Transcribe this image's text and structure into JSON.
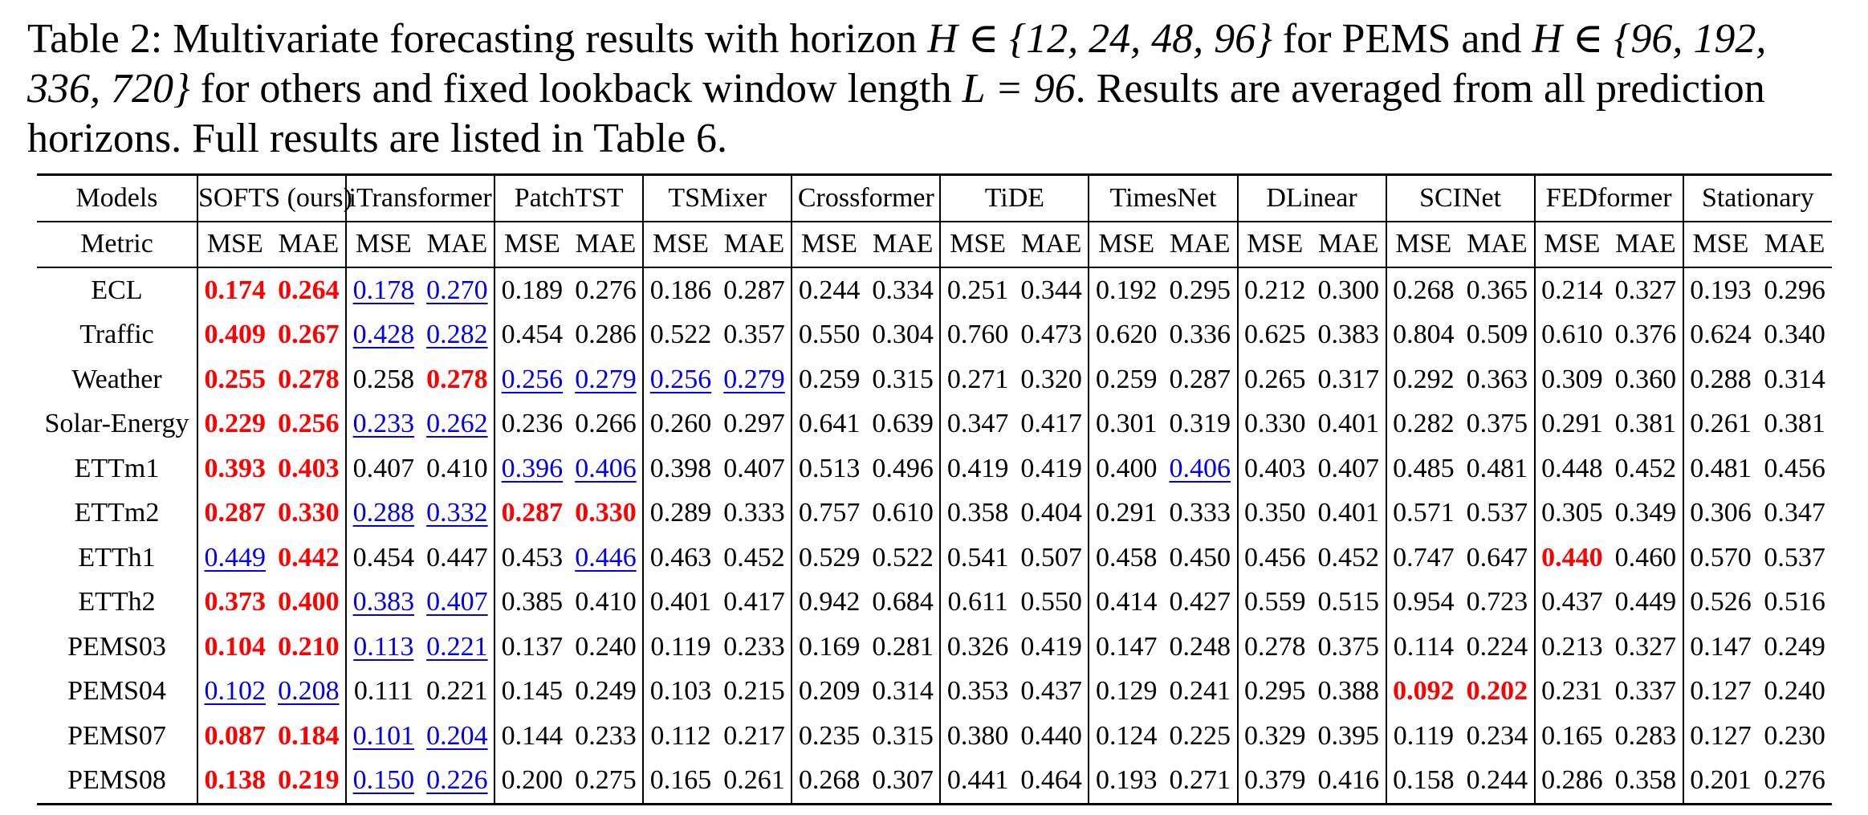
{
  "caption": {
    "label": "Table 2:",
    "p1": "Multivariate forecasting results with horizon ",
    "math1": "H ∈ {12, 24, 48, 96}",
    "p2": " for PEMS and ",
    "math2": "H ∈ {96, 192, 336, 720}",
    "p3": " for others and fixed lookback window length ",
    "math3": "L = 96",
    "p4": ". Results are averaged from all prediction horizons. Full results are listed in Table 6."
  },
  "table": {
    "models_label": "Models",
    "metric_label": "Metric",
    "metrics": [
      "MSE",
      "MAE"
    ],
    "models": [
      "SOFTS (ours)",
      "iTransformer",
      "PatchTST",
      "TSMixer",
      "Crossformer",
      "TiDE",
      "TimesNet",
      "DLinear",
      "SCINet",
      "FEDformer",
      "Stationary"
    ],
    "rows": [
      {
        "dataset": "ECL",
        "cells": [
          {
            "v": "0.174",
            "s": "best"
          },
          {
            "v": "0.264",
            "s": "best"
          },
          {
            "v": "0.178",
            "s": "second"
          },
          {
            "v": "0.270",
            "s": "second"
          },
          {
            "v": "0.189"
          },
          {
            "v": "0.276"
          },
          {
            "v": "0.186"
          },
          {
            "v": "0.287"
          },
          {
            "v": "0.244"
          },
          {
            "v": "0.334"
          },
          {
            "v": "0.251"
          },
          {
            "v": "0.344"
          },
          {
            "v": "0.192"
          },
          {
            "v": "0.295"
          },
          {
            "v": "0.212"
          },
          {
            "v": "0.300"
          },
          {
            "v": "0.268"
          },
          {
            "v": "0.365"
          },
          {
            "v": "0.214"
          },
          {
            "v": "0.327"
          },
          {
            "v": "0.193"
          },
          {
            "v": "0.296"
          }
        ]
      },
      {
        "dataset": "Traffic",
        "cells": [
          {
            "v": "0.409",
            "s": "best"
          },
          {
            "v": "0.267",
            "s": "best"
          },
          {
            "v": "0.428",
            "s": "second"
          },
          {
            "v": "0.282",
            "s": "second"
          },
          {
            "v": "0.454"
          },
          {
            "v": "0.286"
          },
          {
            "v": "0.522"
          },
          {
            "v": "0.357"
          },
          {
            "v": "0.550"
          },
          {
            "v": "0.304"
          },
          {
            "v": "0.760"
          },
          {
            "v": "0.473"
          },
          {
            "v": "0.620"
          },
          {
            "v": "0.336"
          },
          {
            "v": "0.625"
          },
          {
            "v": "0.383"
          },
          {
            "v": "0.804"
          },
          {
            "v": "0.509"
          },
          {
            "v": "0.610"
          },
          {
            "v": "0.376"
          },
          {
            "v": "0.624"
          },
          {
            "v": "0.340"
          }
        ]
      },
      {
        "dataset": "Weather",
        "cells": [
          {
            "v": "0.255",
            "s": "best"
          },
          {
            "v": "0.278",
            "s": "best"
          },
          {
            "v": "0.258"
          },
          {
            "v": "0.278",
            "s": "best"
          },
          {
            "v": "0.256",
            "s": "second"
          },
          {
            "v": "0.279",
            "s": "second"
          },
          {
            "v": "0.256",
            "s": "second"
          },
          {
            "v": "0.279",
            "s": "second"
          },
          {
            "v": "0.259"
          },
          {
            "v": "0.315"
          },
          {
            "v": "0.271"
          },
          {
            "v": "0.320"
          },
          {
            "v": "0.259"
          },
          {
            "v": "0.287"
          },
          {
            "v": "0.265"
          },
          {
            "v": "0.317"
          },
          {
            "v": "0.292"
          },
          {
            "v": "0.363"
          },
          {
            "v": "0.309"
          },
          {
            "v": "0.360"
          },
          {
            "v": "0.288"
          },
          {
            "v": "0.314"
          }
        ]
      },
      {
        "dataset": "Solar-Energy",
        "cells": [
          {
            "v": "0.229",
            "s": "best"
          },
          {
            "v": "0.256",
            "s": "best"
          },
          {
            "v": "0.233",
            "s": "second"
          },
          {
            "v": "0.262",
            "s": "second"
          },
          {
            "v": "0.236"
          },
          {
            "v": "0.266"
          },
          {
            "v": "0.260"
          },
          {
            "v": "0.297"
          },
          {
            "v": "0.641"
          },
          {
            "v": "0.639"
          },
          {
            "v": "0.347"
          },
          {
            "v": "0.417"
          },
          {
            "v": "0.301"
          },
          {
            "v": "0.319"
          },
          {
            "v": "0.330"
          },
          {
            "v": "0.401"
          },
          {
            "v": "0.282"
          },
          {
            "v": "0.375"
          },
          {
            "v": "0.291"
          },
          {
            "v": "0.381"
          },
          {
            "v": "0.261"
          },
          {
            "v": "0.381"
          }
        ]
      },
      {
        "dataset": "ETTm1",
        "cells": [
          {
            "v": "0.393",
            "s": "best"
          },
          {
            "v": "0.403",
            "s": "best"
          },
          {
            "v": "0.407"
          },
          {
            "v": "0.410"
          },
          {
            "v": "0.396",
            "s": "second"
          },
          {
            "v": "0.406",
            "s": "second"
          },
          {
            "v": "0.398"
          },
          {
            "v": "0.407"
          },
          {
            "v": "0.513"
          },
          {
            "v": "0.496"
          },
          {
            "v": "0.419"
          },
          {
            "v": "0.419"
          },
          {
            "v": "0.400"
          },
          {
            "v": "0.406",
            "s": "second"
          },
          {
            "v": "0.403"
          },
          {
            "v": "0.407"
          },
          {
            "v": "0.485"
          },
          {
            "v": "0.481"
          },
          {
            "v": "0.448"
          },
          {
            "v": "0.452"
          },
          {
            "v": "0.481"
          },
          {
            "v": "0.456"
          }
        ]
      },
      {
        "dataset": "ETTm2",
        "cells": [
          {
            "v": "0.287",
            "s": "best"
          },
          {
            "v": "0.330",
            "s": "best"
          },
          {
            "v": "0.288",
            "s": "second"
          },
          {
            "v": "0.332",
            "s": "second"
          },
          {
            "v": "0.287",
            "s": "best"
          },
          {
            "v": "0.330",
            "s": "best"
          },
          {
            "v": "0.289"
          },
          {
            "v": "0.333"
          },
          {
            "v": "0.757"
          },
          {
            "v": "0.610"
          },
          {
            "v": "0.358"
          },
          {
            "v": "0.404"
          },
          {
            "v": "0.291"
          },
          {
            "v": "0.333"
          },
          {
            "v": "0.350"
          },
          {
            "v": "0.401"
          },
          {
            "v": "0.571"
          },
          {
            "v": "0.537"
          },
          {
            "v": "0.305"
          },
          {
            "v": "0.349"
          },
          {
            "v": "0.306"
          },
          {
            "v": "0.347"
          }
        ]
      },
      {
        "dataset": "ETTh1",
        "cells": [
          {
            "v": "0.449",
            "s": "second"
          },
          {
            "v": "0.442",
            "s": "best"
          },
          {
            "v": "0.454"
          },
          {
            "v": "0.447"
          },
          {
            "v": "0.453"
          },
          {
            "v": "0.446",
            "s": "second"
          },
          {
            "v": "0.463"
          },
          {
            "v": "0.452"
          },
          {
            "v": "0.529"
          },
          {
            "v": "0.522"
          },
          {
            "v": "0.541"
          },
          {
            "v": "0.507"
          },
          {
            "v": "0.458"
          },
          {
            "v": "0.450"
          },
          {
            "v": "0.456"
          },
          {
            "v": "0.452"
          },
          {
            "v": "0.747"
          },
          {
            "v": "0.647"
          },
          {
            "v": "0.440",
            "s": "best"
          },
          {
            "v": "0.460"
          },
          {
            "v": "0.570"
          },
          {
            "v": "0.537"
          }
        ]
      },
      {
        "dataset": "ETTh2",
        "cells": [
          {
            "v": "0.373",
            "s": "best"
          },
          {
            "v": "0.400",
            "s": "best"
          },
          {
            "v": "0.383",
            "s": "second"
          },
          {
            "v": "0.407",
            "s": "second"
          },
          {
            "v": "0.385"
          },
          {
            "v": "0.410"
          },
          {
            "v": "0.401"
          },
          {
            "v": "0.417"
          },
          {
            "v": "0.942"
          },
          {
            "v": "0.684"
          },
          {
            "v": "0.611"
          },
          {
            "v": "0.550"
          },
          {
            "v": "0.414"
          },
          {
            "v": "0.427"
          },
          {
            "v": "0.559"
          },
          {
            "v": "0.515"
          },
          {
            "v": "0.954"
          },
          {
            "v": "0.723"
          },
          {
            "v": "0.437"
          },
          {
            "v": "0.449"
          },
          {
            "v": "0.526"
          },
          {
            "v": "0.516"
          }
        ]
      },
      {
        "dataset": "PEMS03",
        "cells": [
          {
            "v": "0.104",
            "s": "best"
          },
          {
            "v": "0.210",
            "s": "best"
          },
          {
            "v": "0.113",
            "s": "second"
          },
          {
            "v": "0.221",
            "s": "second"
          },
          {
            "v": "0.137"
          },
          {
            "v": "0.240"
          },
          {
            "v": "0.119"
          },
          {
            "v": "0.233"
          },
          {
            "v": "0.169"
          },
          {
            "v": "0.281"
          },
          {
            "v": "0.326"
          },
          {
            "v": "0.419"
          },
          {
            "v": "0.147"
          },
          {
            "v": "0.248"
          },
          {
            "v": "0.278"
          },
          {
            "v": "0.375"
          },
          {
            "v": "0.114"
          },
          {
            "v": "0.224"
          },
          {
            "v": "0.213"
          },
          {
            "v": "0.327"
          },
          {
            "v": "0.147"
          },
          {
            "v": "0.249"
          }
        ]
      },
      {
        "dataset": "PEMS04",
        "cells": [
          {
            "v": "0.102",
            "s": "second"
          },
          {
            "v": "0.208",
            "s": "second"
          },
          {
            "v": "0.111"
          },
          {
            "v": "0.221"
          },
          {
            "v": "0.145"
          },
          {
            "v": "0.249"
          },
          {
            "v": "0.103"
          },
          {
            "v": "0.215"
          },
          {
            "v": "0.209"
          },
          {
            "v": "0.314"
          },
          {
            "v": "0.353"
          },
          {
            "v": "0.437"
          },
          {
            "v": "0.129"
          },
          {
            "v": "0.241"
          },
          {
            "v": "0.295"
          },
          {
            "v": "0.388"
          },
          {
            "v": "0.092",
            "s": "best"
          },
          {
            "v": "0.202",
            "s": "best"
          },
          {
            "v": "0.231"
          },
          {
            "v": "0.337"
          },
          {
            "v": "0.127"
          },
          {
            "v": "0.240"
          }
        ]
      },
      {
        "dataset": "PEMS07",
        "cells": [
          {
            "v": "0.087",
            "s": "best"
          },
          {
            "v": "0.184",
            "s": "best"
          },
          {
            "v": "0.101",
            "s": "second"
          },
          {
            "v": "0.204",
            "s": "second"
          },
          {
            "v": "0.144"
          },
          {
            "v": "0.233"
          },
          {
            "v": "0.112"
          },
          {
            "v": "0.217"
          },
          {
            "v": "0.235"
          },
          {
            "v": "0.315"
          },
          {
            "v": "0.380"
          },
          {
            "v": "0.440"
          },
          {
            "v": "0.124"
          },
          {
            "v": "0.225"
          },
          {
            "v": "0.329"
          },
          {
            "v": "0.395"
          },
          {
            "v": "0.119"
          },
          {
            "v": "0.234"
          },
          {
            "v": "0.165"
          },
          {
            "v": "0.283"
          },
          {
            "v": "0.127"
          },
          {
            "v": "0.230"
          }
        ]
      },
      {
        "dataset": "PEMS08",
        "cells": [
          {
            "v": "0.138",
            "s": "best"
          },
          {
            "v": "0.219",
            "s": "best"
          },
          {
            "v": "0.150",
            "s": "second"
          },
          {
            "v": "0.226",
            "s": "second"
          },
          {
            "v": "0.200"
          },
          {
            "v": "0.275"
          },
          {
            "v": "0.165"
          },
          {
            "v": "0.261"
          },
          {
            "v": "0.268"
          },
          {
            "v": "0.307"
          },
          {
            "v": "0.441"
          },
          {
            "v": "0.464"
          },
          {
            "v": "0.193"
          },
          {
            "v": "0.271"
          },
          {
            "v": "0.379"
          },
          {
            "v": "0.416"
          },
          {
            "v": "0.158"
          },
          {
            "v": "0.244"
          },
          {
            "v": "0.286"
          },
          {
            "v": "0.358"
          },
          {
            "v": "0.201"
          },
          {
            "v": "0.276"
          }
        ]
      }
    ]
  }
}
